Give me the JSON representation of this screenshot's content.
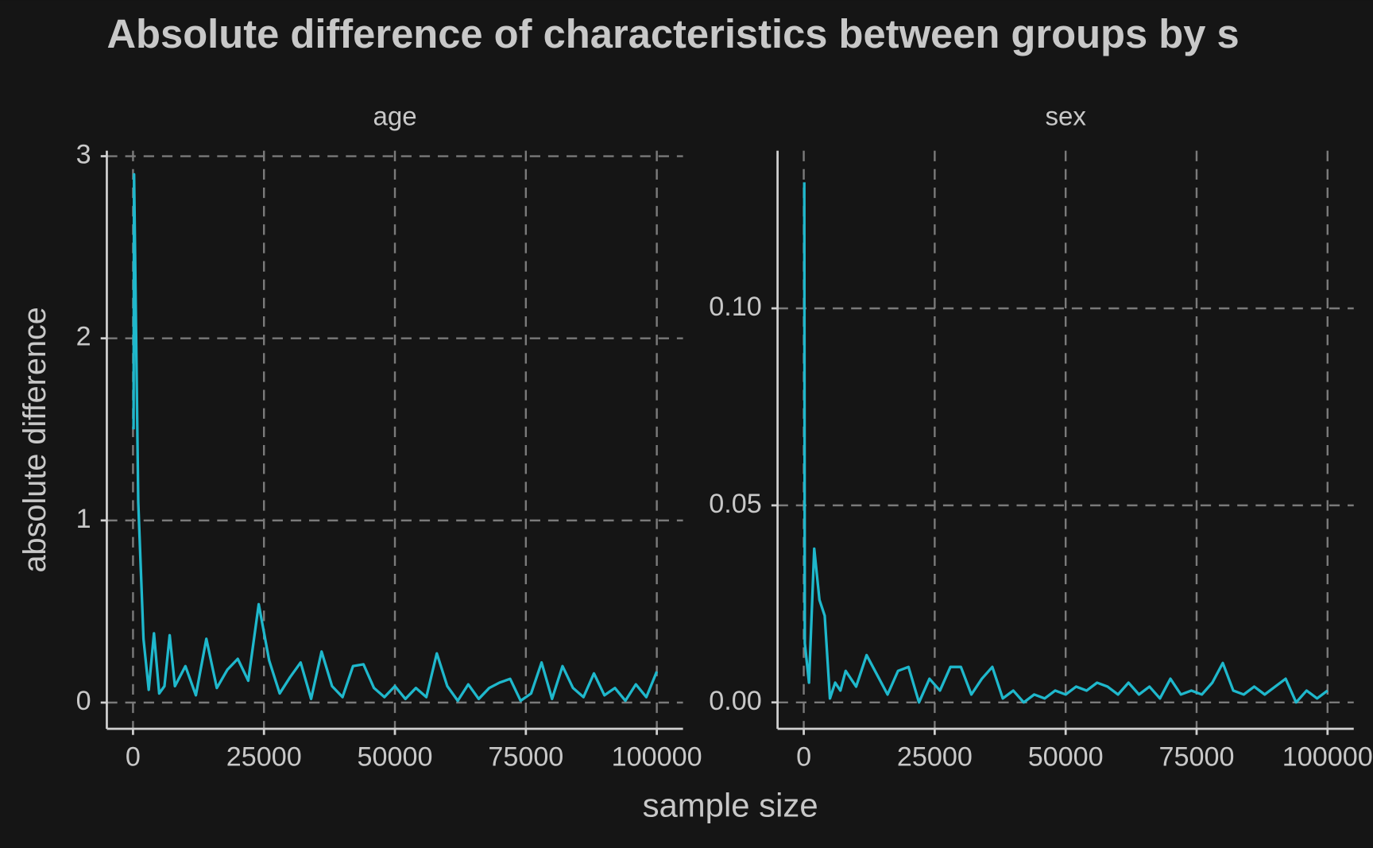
{
  "title": "Absolute difference of characteristics between groups by s",
  "xlabel": "sample size",
  "ylabel": "absolute difference",
  "chart_data": [
    {
      "type": "line",
      "facet": "age",
      "color": "#1fb8cc",
      "grid": true,
      "x": [
        100,
        200,
        1000,
        2000,
        3000,
        4000,
        5000,
        6000,
        7000,
        8000,
        10000,
        12000,
        14000,
        16000,
        18000,
        20000,
        22000,
        24000,
        26000,
        28000,
        30000,
        32000,
        34000,
        36000,
        38000,
        40000,
        42000,
        44000,
        46000,
        48000,
        50000,
        52000,
        54000,
        56000,
        58000,
        60000,
        62000,
        64000,
        66000,
        68000,
        70000,
        72000,
        74000,
        76000,
        78000,
        80000,
        82000,
        84000,
        86000,
        88000,
        90000,
        92000,
        94000,
        96000,
        98000,
        100000
      ],
      "values": [
        1.5,
        2.9,
        1.1,
        0.35,
        0.07,
        0.38,
        0.05,
        0.09,
        0.37,
        0.09,
        0.2,
        0.04,
        0.35,
        0.08,
        0.18,
        0.24,
        0.12,
        0.54,
        0.23,
        0.05,
        0.14,
        0.22,
        0.02,
        0.28,
        0.09,
        0.03,
        0.2,
        0.21,
        0.08,
        0.03,
        0.09,
        0.02,
        0.08,
        0.03,
        0.27,
        0.09,
        0.01,
        0.1,
        0.02,
        0.08,
        0.11,
        0.13,
        0.01,
        0.05,
        0.22,
        0.02,
        0.2,
        0.08,
        0.03,
        0.16,
        0.04,
        0.08,
        0.01,
        0.1,
        0.03,
        0.17
      ],
      "xlim": [
        -5000,
        105000
      ],
      "ylim": [
        -0.144,
        3.03
      ],
      "xticks": [
        0,
        25000,
        50000,
        75000,
        100000
      ],
      "yticks": [
        0,
        1,
        2,
        3
      ]
    },
    {
      "type": "line",
      "facet": "sex",
      "color": "#1fb8cc",
      "grid": true,
      "x": [
        100,
        200,
        1000,
        2000,
        3000,
        4000,
        5000,
        6000,
        7000,
        8000,
        10000,
        12000,
        14000,
        16000,
        18000,
        20000,
        22000,
        24000,
        26000,
        28000,
        30000,
        32000,
        34000,
        36000,
        38000,
        40000,
        42000,
        44000,
        46000,
        48000,
        50000,
        52000,
        54000,
        56000,
        58000,
        60000,
        62000,
        64000,
        66000,
        68000,
        70000,
        72000,
        74000,
        76000,
        78000,
        80000,
        82000,
        84000,
        86000,
        88000,
        90000,
        92000,
        94000,
        96000,
        98000,
        100000
      ],
      "values": [
        0.132,
        0.015,
        0.005,
        0.039,
        0.026,
        0.022,
        0.001,
        0.005,
        0.003,
        0.008,
        0.004,
        0.012,
        0.007,
        0.002,
        0.008,
        0.009,
        0.0,
        0.006,
        0.003,
        0.009,
        0.009,
        0.002,
        0.006,
        0.009,
        0.001,
        0.003,
        0.0,
        0.002,
        0.001,
        0.003,
        0.002,
        0.004,
        0.003,
        0.005,
        0.004,
        0.002,
        0.005,
        0.002,
        0.004,
        0.001,
        0.006,
        0.002,
        0.003,
        0.002,
        0.005,
        0.01,
        0.003,
        0.002,
        0.004,
        0.002,
        0.004,
        0.006,
        0.0,
        0.003,
        0.001,
        0.003
      ],
      "xlim": [
        -5000,
        105000
      ],
      "ylim": [
        -0.0067,
        0.14
      ],
      "xticks": [
        0,
        25000,
        50000,
        75000,
        100000
      ],
      "yticks": [
        {
          "value": 0,
          "label": "0.00"
        },
        {
          "value": 0.05,
          "label": "0.05"
        },
        {
          "value": 0.1,
          "label": "0.10"
        }
      ]
    }
  ]
}
